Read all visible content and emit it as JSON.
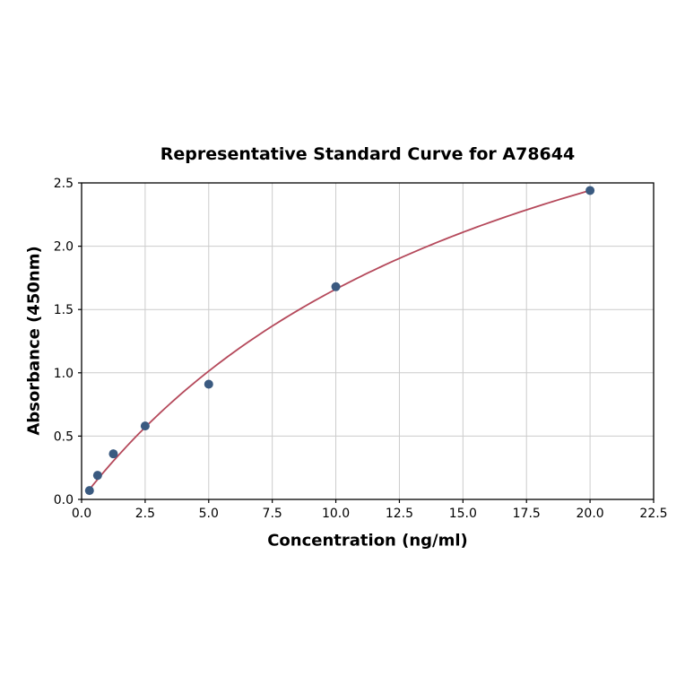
{
  "chart_data": {
    "type": "scatter",
    "title": "Representative Standard Curve for A78644",
    "xlabel": "Concentration (ng/ml)",
    "ylabel": "Absorbance (450nm)",
    "xlim": [
      0,
      22.5
    ],
    "ylim": [
      0,
      2.5
    ],
    "grid": true,
    "legend": "none",
    "x_ticks": {
      "values": [
        0,
        2.5,
        5,
        7.5,
        10,
        12.5,
        15,
        17.5,
        20,
        22.5
      ],
      "labels": [
        "0.0",
        "2.5",
        "5.0",
        "7.5",
        "10.0",
        "12.5",
        "15.0",
        "17.5",
        "20.0",
        "22.5"
      ]
    },
    "y_ticks": {
      "values": [
        0,
        0.5,
        1,
        1.5,
        2,
        2.5
      ],
      "labels": [
        "0.0",
        "0.5",
        "1.0",
        "1.5",
        "2.0",
        "2.5"
      ]
    },
    "points": [
      {
        "x": 0.31,
        "y": 0.07
      },
      {
        "x": 0.63,
        "y": 0.19
      },
      {
        "x": 1.25,
        "y": 0.36
      },
      {
        "x": 2.5,
        "y": 0.58
      },
      {
        "x": 5,
        "y": 0.91
      },
      {
        "x": 10,
        "y": 1.68
      },
      {
        "x": 20,
        "y": 2.44
      }
    ],
    "fit_curve": {
      "model": "saturation: y = vmax*x/(k+x)",
      "vmax": 4.6,
      "k": 17.7,
      "x_start": 0.31,
      "x_end": 20
    },
    "colors": {
      "point": "#3a5a80",
      "curve": "#b5495b",
      "grid": "#cccccc",
      "axis": "#000000",
      "background": "#ffffff"
    }
  }
}
